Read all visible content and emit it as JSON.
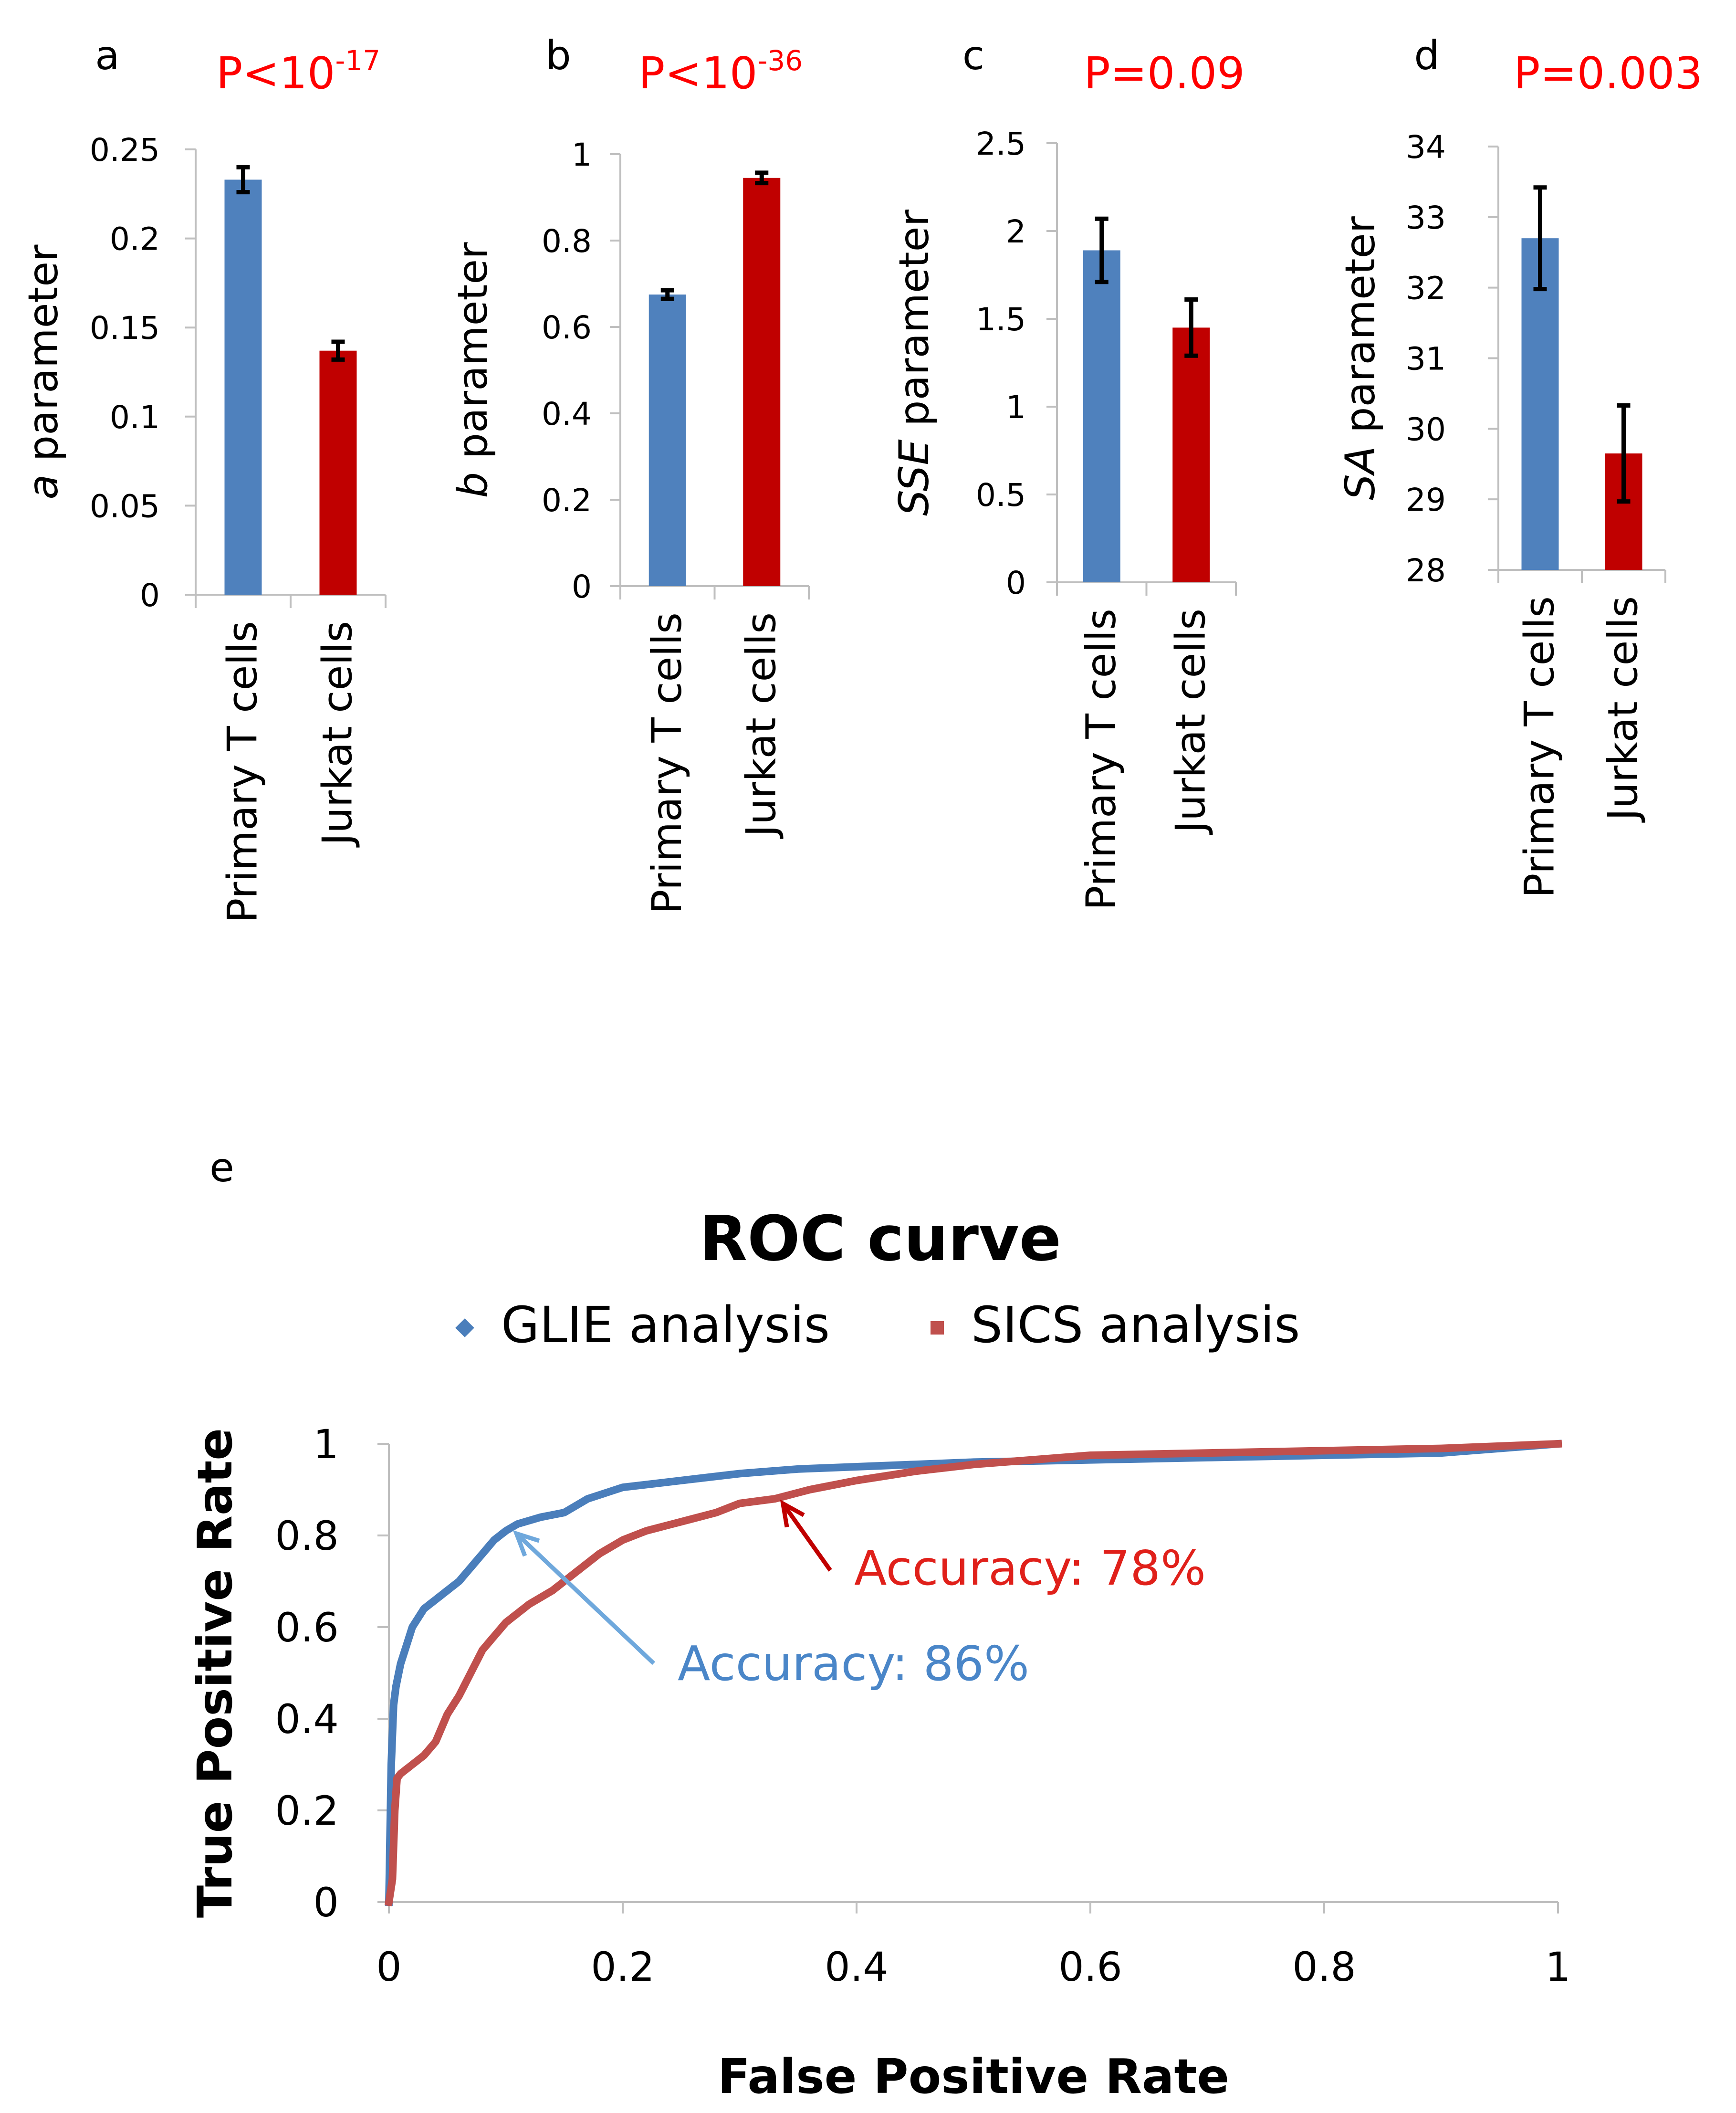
{
  "colors": {
    "primary": "#4F81BD",
    "jurkat": "#C00000",
    "pvalue": "#FF0000",
    "glie": "#4A7EBB",
    "sics": "#C0504D",
    "glie_arrow": "#6FA8DC",
    "sics_arrow": "#C00000",
    "error_bar": "#000000",
    "axis": "#BFBFBF"
  },
  "chart_data": [
    {
      "type": "bar",
      "panel_label": "a",
      "pvalue": {
        "base": "P<10",
        "exp": "-17"
      },
      "ylabel_italic": "a",
      "ylabel_rest": " parameter",
      "categories": [
        "Primary T cells",
        "Jurkat cells"
      ],
      "values": [
        0.233,
        0.137
      ],
      "errors": [
        0.007,
        0.005
      ],
      "ylim": [
        0,
        0.25
      ],
      "yticks": [
        0,
        0.05,
        0.1,
        0.15,
        0.2,
        0.25
      ],
      "ytick_labels": [
        "0",
        "0.05",
        "0.1",
        "0.15",
        "0.2",
        "0.25"
      ]
    },
    {
      "type": "bar",
      "panel_label": "b",
      "pvalue": {
        "base": "P<10",
        "exp": "-36"
      },
      "ylabel_italic": "b",
      "ylabel_rest": " parameter",
      "categories": [
        "Primary T cells",
        "Jurkat cells"
      ],
      "values": [
        0.675,
        0.945
      ],
      "errors": [
        0.01,
        0.012
      ],
      "ylim": [
        0,
        1
      ],
      "yticks": [
        0,
        0.2,
        0.4,
        0.6,
        0.8,
        1
      ],
      "ytick_labels": [
        "0",
        "0.2",
        "0.4",
        "0.6",
        "0.8",
        "1"
      ]
    },
    {
      "type": "bar",
      "panel_label": "c",
      "pvalue": {
        "base": "P=0.09",
        "exp": ""
      },
      "ylabel_italic": "SSE",
      "ylabel_rest": " parameter",
      "categories": [
        "Primary T cells",
        "Jurkat cells"
      ],
      "values": [
        1.89,
        1.45
      ],
      "errors": [
        0.18,
        0.16
      ],
      "ylim": [
        0,
        2.5
      ],
      "yticks": [
        0,
        0.5,
        1,
        1.5,
        2,
        2.5
      ],
      "ytick_labels": [
        "0",
        "0.5",
        "1",
        "1.5",
        "2",
        "2.5"
      ]
    },
    {
      "type": "bar",
      "panel_label": "d",
      "pvalue": {
        "base": "P=0.003",
        "exp": ""
      },
      "ylabel_italic": "SA",
      "ylabel_rest": " parameter",
      "categories": [
        "Primary T cells",
        "Jurkat cells"
      ],
      "values": [
        32.7,
        29.65
      ],
      "errors": [
        0.72,
        0.68
      ],
      "ylim": [
        28,
        34
      ],
      "yticks": [
        28,
        29,
        30,
        31,
        32,
        33,
        34
      ],
      "ytick_labels": [
        "28",
        "29",
        "30",
        "31",
        "32",
        "33",
        "34"
      ]
    },
    {
      "type": "line",
      "panel_label": "e",
      "title": "ROC curve",
      "xlabel": "False Positive Rate",
      "ylabel": "True Positive Rate",
      "xlim": [
        0,
        1
      ],
      "ylim": [
        0,
        1
      ],
      "xticks": [
        0,
        0.2,
        0.4,
        0.6,
        0.8,
        1
      ],
      "xtick_labels": [
        "0",
        "0.2",
        "0.4",
        "0.6",
        "0.8",
        "1"
      ],
      "yticks": [
        0,
        0.2,
        0.4,
        0.6,
        0.8,
        1
      ],
      "ytick_labels": [
        "0",
        "0.2",
        "0.4",
        "0.6",
        "0.8",
        "1"
      ],
      "legend_position": "top",
      "series": [
        {
          "name": "GLIE analysis",
          "x": [
            0,
            0.002,
            0.004,
            0.006,
            0.01,
            0.015,
            0.02,
            0.03,
            0.04,
            0.05,
            0.06,
            0.07,
            0.08,
            0.09,
            0.1,
            0.11,
            0.13,
            0.15,
            0.17,
            0.2,
            0.25,
            0.3,
            0.35,
            0.4,
            0.45,
            0.5,
            0.6,
            0.7,
            0.8,
            0.9,
            0.95,
            1
          ],
          "y": [
            0,
            0.3,
            0.43,
            0.47,
            0.52,
            0.56,
            0.6,
            0.64,
            0.66,
            0.68,
            0.7,
            0.73,
            0.76,
            0.79,
            0.81,
            0.825,
            0.84,
            0.85,
            0.88,
            0.905,
            0.92,
            0.935,
            0.945,
            0.95,
            0.955,
            0.96,
            0.965,
            0.97,
            0.975,
            0.98,
            0.99,
            1
          ]
        },
        {
          "name": "SICS analysis",
          "x": [
            0,
            0.003,
            0.005,
            0.007,
            0.01,
            0.02,
            0.03,
            0.04,
            0.05,
            0.06,
            0.07,
            0.08,
            0.09,
            0.1,
            0.12,
            0.14,
            0.16,
            0.18,
            0.2,
            0.22,
            0.25,
            0.28,
            0.3,
            0.33,
            0.36,
            0.4,
            0.45,
            0.5,
            0.55,
            0.6,
            0.7,
            0.8,
            0.9,
            1
          ],
          "y": [
            0,
            0.05,
            0.2,
            0.27,
            0.28,
            0.3,
            0.32,
            0.35,
            0.41,
            0.45,
            0.5,
            0.55,
            0.58,
            0.61,
            0.65,
            0.68,
            0.72,
            0.76,
            0.79,
            0.81,
            0.83,
            0.85,
            0.87,
            0.88,
            0.9,
            0.92,
            0.94,
            0.955,
            0.965,
            0.975,
            0.98,
            0.985,
            0.99,
            1
          ]
        }
      ],
      "annotations": [
        {
          "text": "Accuracy: 86%",
          "series": "GLIE analysis",
          "point": [
            0.105,
            0.825
          ]
        },
        {
          "text": "Accuracy: 78%",
          "series": "SICS analysis",
          "point": [
            0.335,
            0.88
          ]
        }
      ]
    }
  ]
}
